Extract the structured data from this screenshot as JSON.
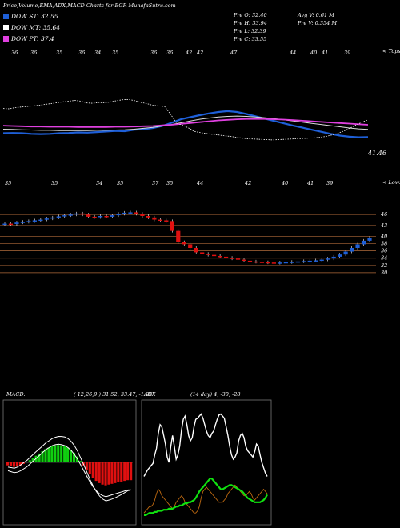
{
  "header": {
    "title": "Price,Volume,EMA,ADX,MACD Charts for BGR MunafaSutra.com",
    "pre_open": "Pre   O: 32.40",
    "pre_high": "Pre   H: 33.94",
    "pre_low": "Pre   L: 32.39",
    "pre_close": "Pre   C: 33.55",
    "avg_vol": "Avg V: 0.61 M",
    "pre_vol": "Pre   V: 0.354  M"
  },
  "legend": [
    {
      "label": "DOW ST: 32.55",
      "color": "#1e5fd8"
    },
    {
      "label": "DOW MT: 35.64",
      "color": "#ffffff"
    },
    {
      "label": "DOW PT: 37.4",
      "color": "#e040e0"
    }
  ],
  "labels": {
    "tops": "< Tops",
    "lows": "< Lows",
    "last_price": "41.46",
    "macd_label": "MACD:",
    "macd_values": "( 12,26,9 ) 31.52, 33.47, -1.95",
    "adx_label": "ADX",
    "adx_values": "(14  day) 4,  -30,  -28",
    "top_labels": [
      "36",
      "36",
      "35",
      "36",
      "34",
      "35",
      "36",
      "36",
      "42",
      "42",
      "47",
      "44",
      "40",
      "41",
      "39"
    ],
    "low_labels": [
      "35",
      "35",
      "34",
      "35",
      "37",
      "35",
      "44",
      "42",
      "40",
      "41",
      "39"
    ],
    "price_levels": [
      "46",
      "43",
      "40",
      "38",
      "36",
      "34",
      "32",
      "30"
    ]
  },
  "colors": {
    "up": "#1e5fd8",
    "down": "#e01010",
    "macd_up": "#10d010",
    "macd_down": "#e01010",
    "grid": "#b06a3a",
    "ema_pink": "#e040e0",
    "adx_green": "#10e010",
    "adx_orange": "#c06a10"
  },
  "chart_data": [
    {
      "type": "line",
      "x": [
        0,
        1,
        2,
        3,
        4,
        5,
        6,
        7,
        8,
        9,
        10,
        11,
        12,
        13,
        14,
        15,
        16,
        17,
        18,
        19,
        20,
        21,
        22,
        23,
        24,
        25,
        26,
        27,
        28,
        29,
        30,
        31,
        32,
        33,
        34,
        35,
        36,
        37,
        38,
        39
      ],
      "series": [
        {
          "values": [
            35.0,
            35.1,
            35.0,
            34.8,
            34.7,
            34.8,
            35.0,
            35.1,
            35.3,
            35.2,
            35.4,
            35.6,
            35.8,
            35.7,
            36.2,
            36.4,
            36.8,
            37.5,
            38.6,
            39.8,
            40.5,
            41.2,
            41.8,
            42.3,
            42.6,
            42.3,
            41.6,
            40.8,
            40.0,
            39.2,
            38.4,
            37.6,
            36.9,
            36.2,
            35.5,
            34.8,
            34.2,
            33.8,
            33.6,
            33.7
          ]
        },
        {
          "values": [
            36.4,
            36.3,
            36.2,
            36.1,
            36.0,
            36.0,
            35.9,
            35.9,
            35.9,
            35.9,
            36.0,
            36.0,
            36.1,
            36.2,
            36.4,
            36.7,
            37.0,
            37.5,
            38.0,
            38.6,
            39.2,
            39.8,
            40.2,
            40.6,
            40.8,
            40.9,
            40.8,
            40.6,
            40.3,
            40.0,
            39.6,
            39.2,
            38.8,
            38.4,
            38.0,
            37.6,
            37.2,
            36.8,
            36.5,
            36.3
          ]
        },
        {
          "values": [
            37.6,
            37.5,
            37.4,
            37.3,
            37.3,
            37.2,
            37.2,
            37.2,
            37.1,
            37.1,
            37.1,
            37.1,
            37.2,
            37.2,
            37.3,
            37.4,
            37.5,
            37.7,
            37.9,
            38.2,
            38.5,
            38.8,
            39.1,
            39.4,
            39.6,
            39.8,
            39.9,
            39.9,
            39.9,
            39.8,
            39.7,
            39.5,
            39.3,
            39.1,
            38.9,
            38.7,
            38.5,
            38.3,
            38.1,
            37.9
          ]
        }
      ],
      "ylim": [
        28,
        50
      ]
    },
    {
      "type": "bar",
      "x": [
        0,
        1,
        2,
        3,
        4,
        5,
        6,
        7,
        8,
        9,
        10,
        11,
        12,
        13,
        14,
        15,
        16,
        17,
        18,
        19,
        20,
        21,
        22,
        23,
        24,
        25,
        26,
        27,
        28,
        29,
        30,
        31,
        32,
        33,
        34,
        35,
        36,
        37,
        38,
        39,
        40,
        41,
        42,
        43,
        44,
        45,
        46,
        47,
        48,
        49,
        50,
        51,
        52,
        53,
        54,
        55,
        56,
        57,
        58,
        59,
        60,
        61
      ],
      "series": [
        {
          "name": "open",
          "values": [
            43.2,
            43.5,
            43.4,
            43.8,
            44.0,
            44.2,
            44.4,
            44.6,
            44.9,
            45.2,
            45.5,
            45.8,
            46.0,
            46.3,
            46.0,
            45.4,
            45.3,
            45.6,
            45.4,
            45.8,
            46.2,
            46.5,
            46.6,
            46.2,
            45.6,
            45.2,
            44.6,
            44.4,
            44.2,
            41.5,
            38.4,
            37.8,
            36.8,
            35.6,
            35.2,
            34.9,
            34.6,
            34.4,
            34.1,
            33.9,
            33.6,
            33.3,
            33.1,
            33.0,
            32.9,
            32.8,
            32.7,
            32.8,
            32.9,
            33.0,
            33.1,
            33.2,
            33.3,
            33.4,
            33.6,
            33.9,
            34.4,
            35.0,
            35.8,
            36.8,
            37.8,
            38.8
          ]
        },
        {
          "name": "close",
          "values": [
            43.5,
            43.4,
            43.8,
            44.0,
            44.2,
            44.4,
            44.6,
            44.9,
            45.2,
            45.5,
            45.8,
            46.0,
            46.3,
            46.0,
            45.4,
            45.3,
            45.6,
            45.4,
            45.8,
            46.2,
            46.5,
            46.6,
            46.2,
            45.6,
            45.2,
            44.6,
            44.4,
            44.2,
            41.5,
            38.4,
            37.8,
            36.8,
            35.6,
            35.2,
            34.9,
            34.6,
            34.4,
            34.1,
            33.9,
            33.6,
            33.3,
            33.1,
            33.0,
            32.9,
            32.8,
            32.7,
            32.8,
            32.9,
            33.0,
            33.1,
            33.2,
            33.3,
            33.4,
            33.6,
            33.9,
            34.4,
            35.0,
            35.8,
            36.8,
            37.8,
            38.8,
            39.6
          ]
        }
      ],
      "ylim": [
        28,
        50
      ]
    },
    {
      "type": "bar",
      "x": [
        0,
        1,
        2,
        3,
        4,
        5,
        6,
        7,
        8,
        9,
        10,
        11,
        12,
        13,
        14,
        15,
        16,
        17,
        18,
        19,
        20,
        21,
        22,
        23,
        24,
        25,
        26,
        27,
        28,
        29,
        30,
        31,
        32,
        33,
        34,
        35,
        36,
        37,
        38,
        39
      ],
      "values": [
        -0.4,
        -0.5,
        -0.6,
        -0.55,
        -0.4,
        -0.2,
        0.0,
        0.3,
        0.6,
        0.9,
        1.2,
        1.5,
        1.8,
        2.0,
        2.2,
        2.3,
        2.35,
        2.3,
        2.2,
        2.0,
        1.7,
        1.3,
        0.8,
        0.2,
        -0.4,
        -1.0,
        -1.6,
        -2.1,
        -2.5,
        -2.8,
        -3.0,
        -3.1,
        -3.0,
        -2.9,
        -2.8,
        -2.7,
        -2.6,
        -2.5,
        -2.4,
        -2.4
      ],
      "ylim": [
        -8,
        8
      ]
    },
    {
      "type": "line",
      "x": [
        0,
        1,
        2,
        3,
        4,
        5,
        6,
        7,
        8,
        9,
        10,
        11,
        12,
        13,
        14,
        15,
        16,
        17,
        18,
        19,
        20,
        21,
        22,
        23,
        24,
        25,
        26,
        27,
        28,
        29,
        30,
        31,
        32,
        33,
        34,
        35,
        36,
        37,
        38,
        39,
        40,
        41,
        42,
        43,
        44,
        45,
        46,
        47,
        48,
        49,
        50,
        51,
        52,
        53,
        54,
        55,
        56,
        57,
        58,
        59,
        60,
        61,
        62,
        63,
        64,
        65,
        66,
        67,
        68,
        69
      ],
      "series": [
        {
          "values": [
            42,
            45,
            48,
            50,
            52,
            54,
            62,
            68,
            82,
            90,
            88,
            80,
            72,
            60,
            55,
            70,
            80,
            70,
            58,
            62,
            70,
            85,
            95,
            98,
            90,
            80,
            75,
            78,
            88,
            95,
            96,
            98,
            100,
            96,
            90,
            84,
            80,
            78,
            82,
            84,
            90,
            95,
            99,
            100,
            98,
            96,
            88,
            80,
            70,
            62,
            58,
            60,
            64,
            75,
            80,
            82,
            78,
            70,
            66,
            64,
            62,
            60,
            65,
            72,
            70,
            62,
            55,
            50,
            45,
            42
          ]
        },
        {
          "values": [
            8,
            10,
            12,
            14,
            14,
            16,
            20,
            26,
            30,
            28,
            24,
            22,
            20,
            18,
            16,
            14,
            12,
            14,
            18,
            20,
            22,
            24,
            22,
            18,
            16,
            14,
            12,
            10,
            8,
            8,
            10,
            14,
            22,
            28,
            30,
            32,
            30,
            28,
            26,
            24,
            22,
            20,
            18,
            18,
            18,
            20,
            22,
            26,
            28,
            30,
            32,
            34,
            32,
            30,
            28,
            26,
            24,
            24,
            26,
            28,
            26,
            22,
            20,
            22,
            24,
            26,
            28,
            30,
            28,
            26
          ]
        },
        {
          "values": [
            6,
            6,
            7,
            8,
            8,
            8,
            9,
            9,
            10,
            10,
            10,
            11,
            11,
            11,
            12,
            12,
            12,
            13,
            14,
            14,
            15,
            15,
            16,
            17,
            17,
            18,
            18,
            19,
            20,
            22,
            25,
            28,
            30,
            32,
            34,
            36,
            38,
            40,
            40,
            38,
            36,
            34,
            32,
            30,
            30,
            31,
            32,
            33,
            34,
            34,
            33,
            32,
            31,
            30,
            29,
            28,
            26,
            24,
            22,
            21,
            20,
            19,
            18,
            18,
            18,
            18,
            19,
            20,
            22,
            25
          ]
        }
      ],
      "ylim": [
        0,
        110
      ]
    }
  ]
}
